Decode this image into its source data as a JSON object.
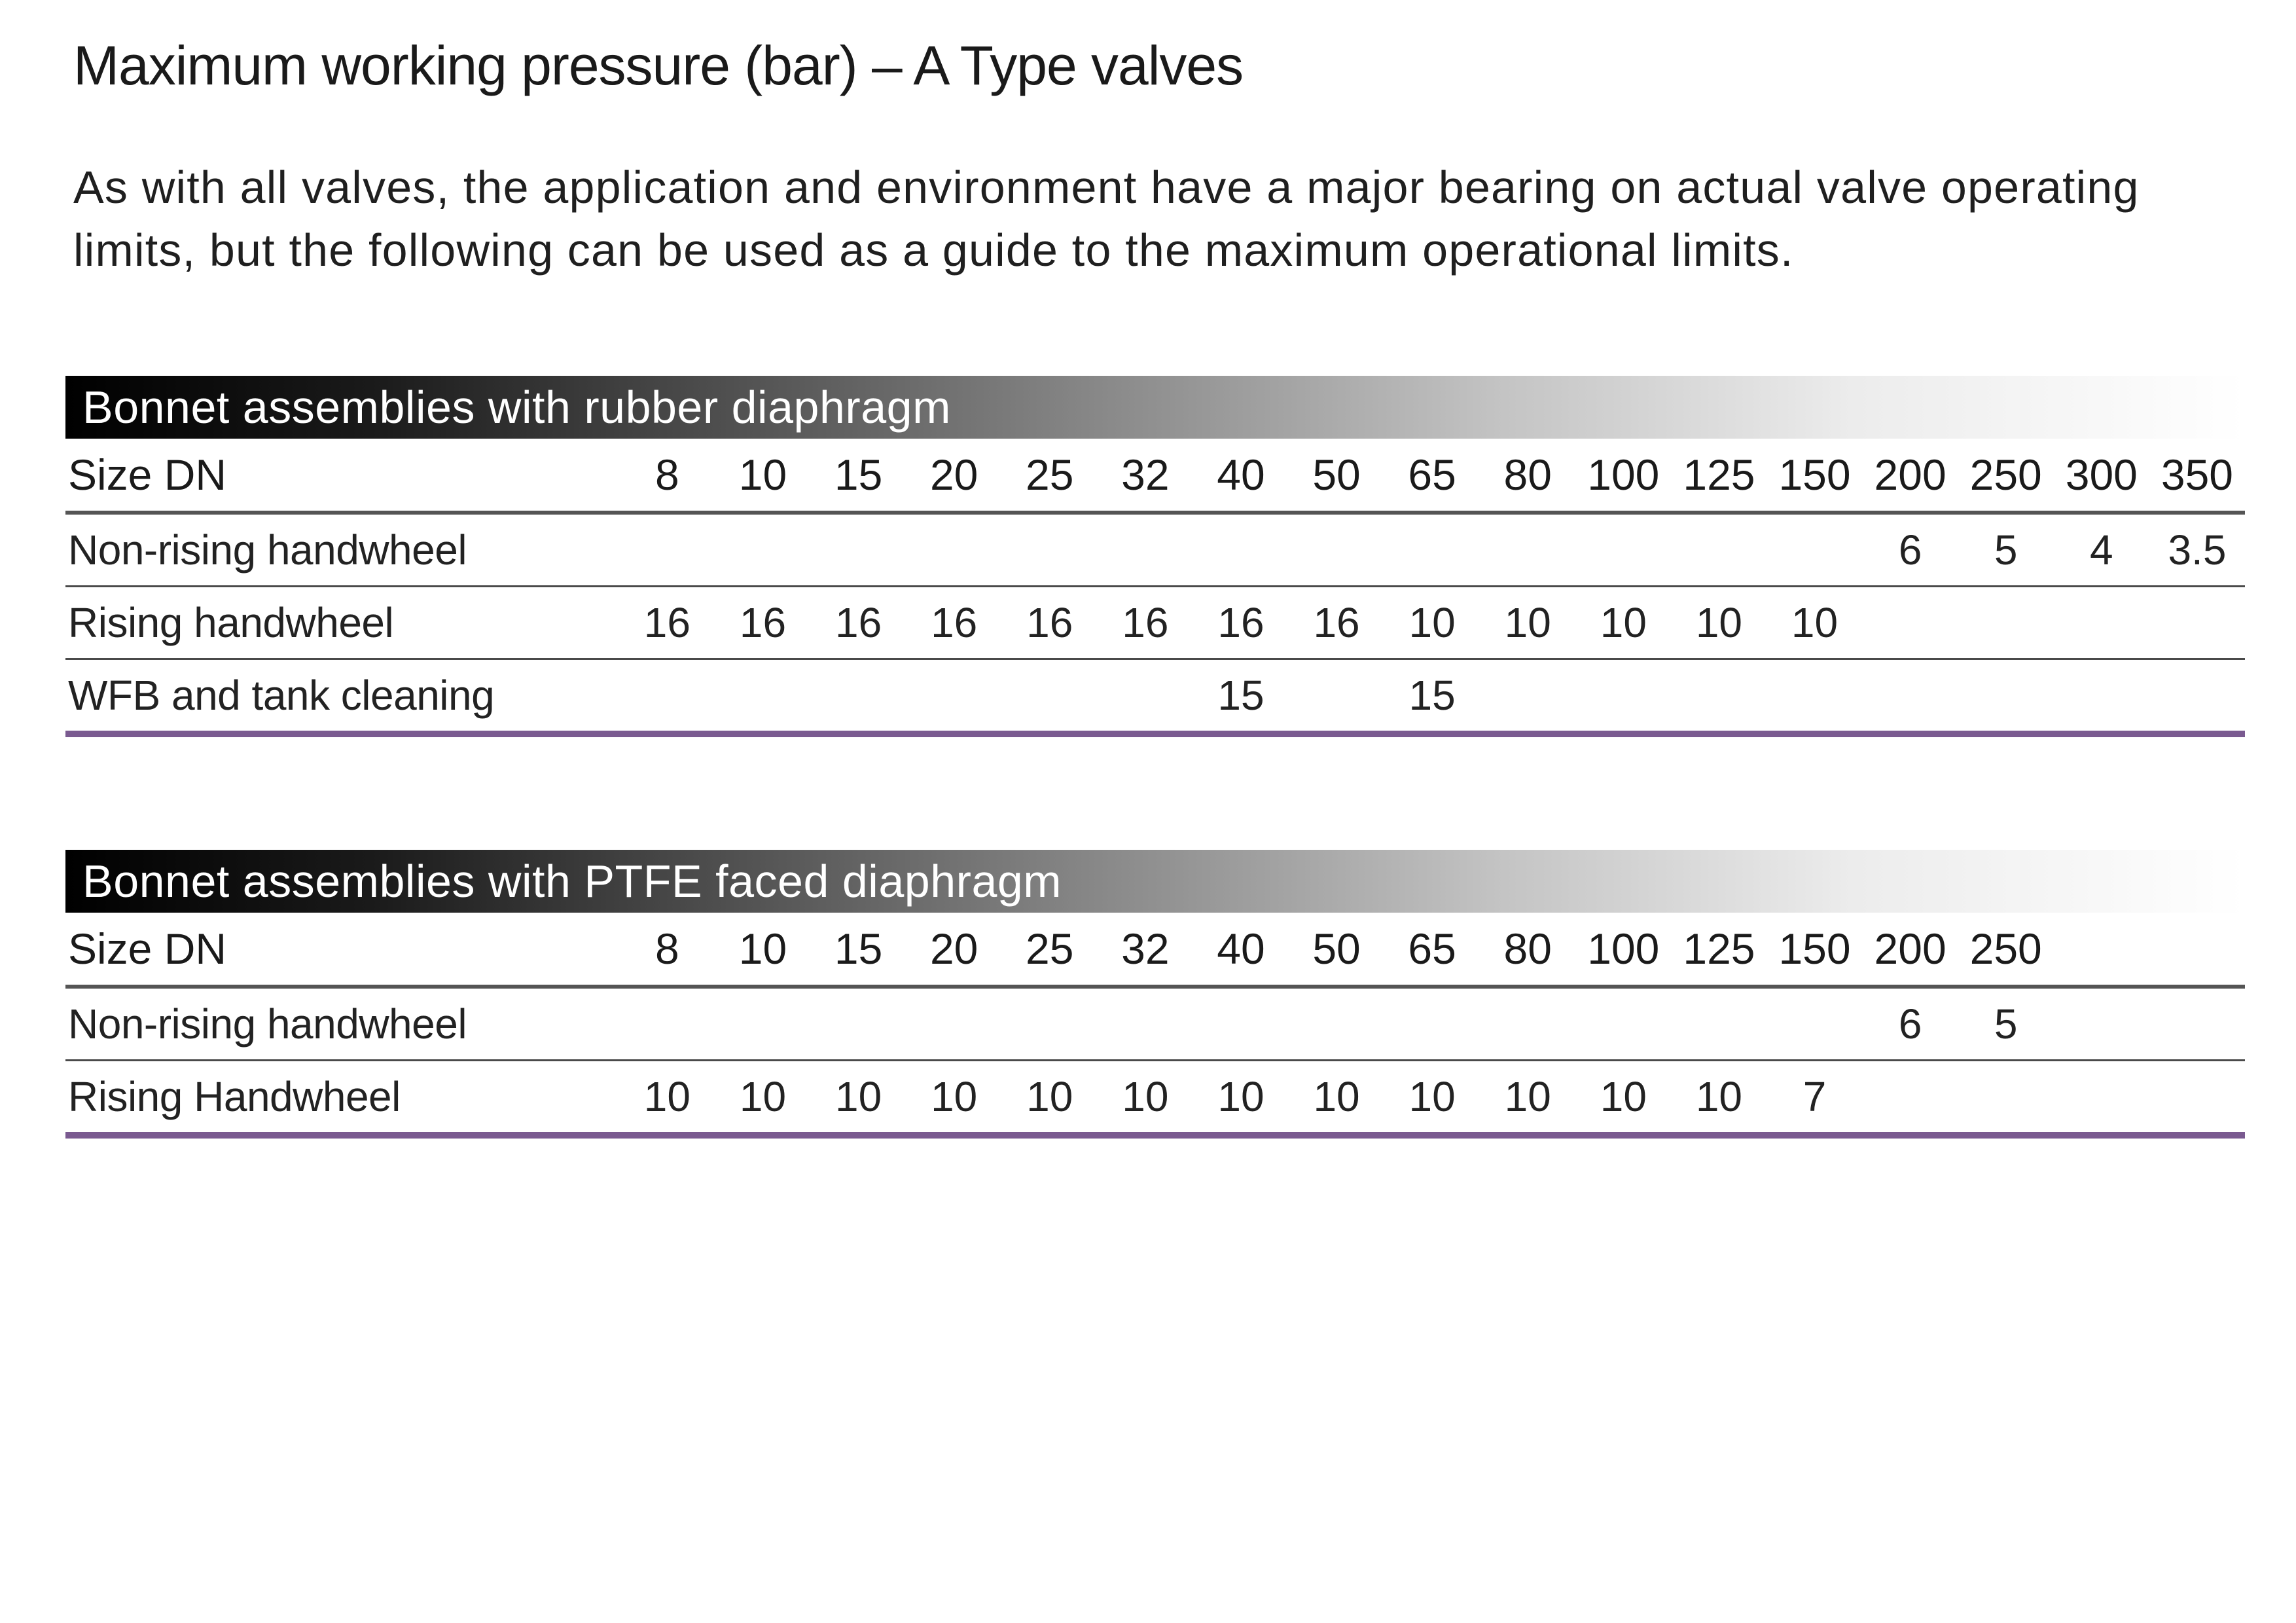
{
  "page": {
    "title": "Maximum working pressure (bar) – A Type valves",
    "intro": "As with all valves, the application and environment have a major bearing on actual valve operating limits, but the following can be used as a guide to the maximum operational limits."
  },
  "tables": [
    {
      "title": "Bonnet assemblies with rubber diaphragm",
      "header_label": "Size DN",
      "sizes": [
        "8",
        "10",
        "15",
        "20",
        "25",
        "32",
        "40",
        "50",
        "65",
        "80",
        "100",
        "125",
        "150",
        "200",
        "250",
        "300",
        "350"
      ],
      "rows": [
        {
          "label": "Non-rising handwheel",
          "values": [
            "",
            "",
            "",
            "",
            "",
            "",
            "",
            "",
            "",
            "",
            "",
            "",
            "",
            "6",
            "5",
            "4",
            "3.5"
          ]
        },
        {
          "label": "Rising handwheel",
          "values": [
            "16",
            "16",
            "16",
            "16",
            "16",
            "16",
            "16",
            "16",
            "10",
            "10",
            "10",
            "10",
            "10",
            "",
            "",
            "",
            ""
          ]
        },
        {
          "label": "WFB and tank cleaning",
          "values": [
            "",
            "",
            "",
            "",
            "",
            "",
            "15",
            "",
            "15",
            "",
            "",
            "",
            "",
            "",
            "",
            "",
            ""
          ]
        }
      ]
    },
    {
      "title": "Bonnet assemblies with PTFE faced diaphragm",
      "header_label": "Size DN",
      "sizes": [
        "8",
        "10",
        "15",
        "20",
        "25",
        "32",
        "40",
        "50",
        "65",
        "80",
        "100",
        "125",
        "150",
        "200",
        "250",
        "",
        ""
      ],
      "rows": [
        {
          "label": "Non-rising handwheel",
          "values": [
            "",
            "",
            "",
            "",
            "",
            "",
            "",
            "",
            "",
            "",
            "",
            "",
            "",
            "6",
            "5",
            "",
            ""
          ]
        },
        {
          "label": "Rising Handwheel",
          "values": [
            "10",
            "10",
            "10",
            "10",
            "10",
            "10",
            "10",
            "10",
            "10",
            "10",
            "10",
            "10",
            "7",
            "",
            "",
            "",
            ""
          ]
        }
      ]
    }
  ]
}
